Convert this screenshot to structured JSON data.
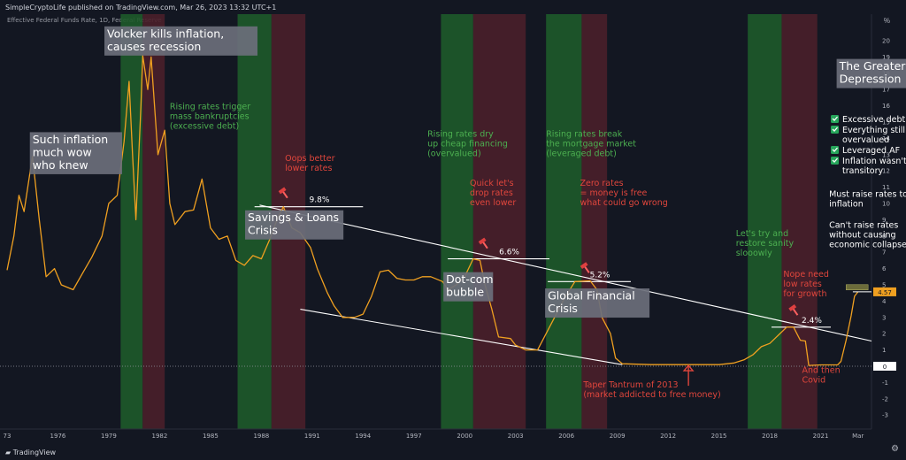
{
  "header": {
    "publisher": "SimpleCryptoLife published on TradingView.com, Mar 26, 2023 13:32 UTC+1",
    "series_title": "Effective Federal Funds Rate, 1D, Federal Reserve",
    "unit": "%",
    "logo": "TradingView"
  },
  "colors": {
    "background": "#131722",
    "line": "#f0a020",
    "green_band": "#1e5a2a",
    "red_band": "#4a1f2a",
    "annot_red": "#e0463c",
    "annot_green": "#4caf50",
    "trend": "#ffffff",
    "check": "#26a65b"
  },
  "icons": [
    "tradingview-logo-icon",
    "settings-gear-icon"
  ],
  "chart_data": {
    "type": "line",
    "title": "Effective Federal Funds Rate",
    "xlabel": "",
    "ylabel": "%",
    "ylim": [
      -3,
      21
    ],
    "xlim": [
      1973,
      2024
    ],
    "x_ticks": [
      "73",
      "1976",
      "1979",
      "1982",
      "1985",
      "1988",
      "1991",
      "1994",
      "1997",
      "2000",
      "2003",
      "2006",
      "2009",
      "2012",
      "2015",
      "2018",
      "2021",
      "Mar"
    ],
    "y_ticks": [
      20,
      19,
      18,
      17,
      16,
      15,
      14,
      13,
      12,
      11,
      10,
      9,
      8,
      7,
      6,
      5,
      4,
      3,
      2,
      1,
      0,
      -1,
      -2,
      -3
    ],
    "series": [
      {
        "values": [
          [
            1973.0,
            5.9
          ],
          [
            1973.4,
            8.0
          ],
          [
            1973.7,
            10.5
          ],
          [
            1974.0,
            9.5
          ],
          [
            1974.5,
            12.9
          ],
          [
            1974.9,
            9.0
          ],
          [
            1975.3,
            5.5
          ],
          [
            1975.8,
            6.0
          ],
          [
            1976.2,
            5.0
          ],
          [
            1976.9,
            4.7
          ],
          [
            1977.5,
            5.8
          ],
          [
            1978.0,
            6.7
          ],
          [
            1978.6,
            8.0
          ],
          [
            1979.0,
            10.0
          ],
          [
            1979.5,
            10.5
          ],
          [
            1979.9,
            13.8
          ],
          [
            1980.2,
            17.5
          ],
          [
            1980.4,
            13.0
          ],
          [
            1980.6,
            9.0
          ],
          [
            1980.9,
            16.0
          ],
          [
            1981.0,
            19.1
          ],
          [
            1981.3,
            17.0
          ],
          [
            1981.5,
            19.0
          ],
          [
            1981.9,
            13.0
          ],
          [
            1982.3,
            14.5
          ],
          [
            1982.6,
            10.0
          ],
          [
            1982.9,
            8.7
          ],
          [
            1983.5,
            9.5
          ],
          [
            1984.0,
            9.6
          ],
          [
            1984.5,
            11.5
          ],
          [
            1985.0,
            8.5
          ],
          [
            1985.5,
            7.8
          ],
          [
            1986.0,
            8.0
          ],
          [
            1986.5,
            6.5
          ],
          [
            1987.0,
            6.2
          ],
          [
            1987.5,
            6.8
          ],
          [
            1988.0,
            6.6
          ],
          [
            1988.5,
            7.8
          ],
          [
            1989.0,
            9.2
          ],
          [
            1989.3,
            9.8
          ],
          [
            1989.8,
            8.5
          ],
          [
            1990.3,
            8.2
          ],
          [
            1990.9,
            7.3
          ],
          [
            1991.3,
            6.0
          ],
          [
            1991.9,
            4.5
          ],
          [
            1992.3,
            3.7
          ],
          [
            1992.8,
            3.0
          ],
          [
            1993.5,
            3.0
          ],
          [
            1994.0,
            3.2
          ],
          [
            1994.5,
            4.3
          ],
          [
            1995.0,
            5.8
          ],
          [
            1995.5,
            5.9
          ],
          [
            1996.0,
            5.4
          ],
          [
            1996.5,
            5.3
          ],
          [
            1997.0,
            5.3
          ],
          [
            1997.5,
            5.5
          ],
          [
            1998.0,
            5.5
          ],
          [
            1998.7,
            5.2
          ],
          [
            1999.0,
            4.7
          ],
          [
            1999.5,
            5.0
          ],
          [
            2000.0,
            5.5
          ],
          [
            2000.5,
            6.6
          ],
          [
            2000.9,
            6.5
          ],
          [
            2001.2,
            5.0
          ],
          [
            2001.6,
            3.5
          ],
          [
            2002.0,
            1.8
          ],
          [
            2002.7,
            1.7
          ],
          [
            2003.0,
            1.3
          ],
          [
            2003.6,
            1.0
          ],
          [
            2004.3,
            1.0
          ],
          [
            2004.8,
            2.0
          ],
          [
            2005.3,
            3.0
          ],
          [
            2005.9,
            4.2
          ],
          [
            2006.5,
            5.2
          ],
          [
            2007.4,
            5.25
          ],
          [
            2007.8,
            4.7
          ],
          [
            2008.1,
            3.0
          ],
          [
            2008.6,
            2.0
          ],
          [
            2008.9,
            0.5
          ],
          [
            2009.3,
            0.15
          ],
          [
            2011.0,
            0.1
          ],
          [
            2013.0,
            0.1
          ],
          [
            2015.0,
            0.1
          ],
          [
            2015.9,
            0.2
          ],
          [
            2016.5,
            0.4
          ],
          [
            2017.0,
            0.7
          ],
          [
            2017.5,
            1.2
          ],
          [
            2018.0,
            1.4
          ],
          [
            2018.5,
            1.9
          ],
          [
            2019.0,
            2.4
          ],
          [
            2019.4,
            2.4
          ],
          [
            2019.8,
            1.6
          ],
          [
            2020.1,
            1.55
          ],
          [
            2020.3,
            0.05
          ],
          [
            2021.0,
            0.08
          ],
          [
            2022.0,
            0.08
          ],
          [
            2022.2,
            0.3
          ],
          [
            2022.5,
            1.6
          ],
          [
            2022.8,
            3.1
          ],
          [
            2023.0,
            4.3
          ],
          [
            2023.2,
            4.57
          ]
        ]
      }
    ],
    "bands": [
      {
        "color": "green",
        "from": 1979.7,
        "to": 1981.0
      },
      {
        "color": "red",
        "from": 1981.0,
        "to": 1982.3
      },
      {
        "color": "green",
        "from": 1986.6,
        "to": 1988.6
      },
      {
        "color": "red",
        "from": 1988.6,
        "to": 1990.6
      },
      {
        "color": "green",
        "from": 1998.6,
        "to": 2000.5
      },
      {
        "color": "red",
        "from": 2000.5,
        "to": 2003.6
      },
      {
        "color": "green",
        "from": 2004.8,
        "to": 2006.9
      },
      {
        "color": "red",
        "from": 2006.9,
        "to": 2008.4
      },
      {
        "color": "green",
        "from": 2016.7,
        "to": 2018.7
      },
      {
        "color": "red",
        "from": 2018.7,
        "to": 2020.8
      }
    ],
    "peak_lines": [
      {
        "label": "9.8%",
        "value": 9.8,
        "from": 1987.6,
        "to": 1994.0
      },
      {
        "label": "6.6%",
        "value": 6.6,
        "from": 1999.0,
        "to": 2005.0
      },
      {
        "label": "5.2%",
        "value": 5.2,
        "from": 2004.9,
        "to": 2009.8
      },
      {
        "label": "2.4%",
        "value": 2.4,
        "from": 2018.1,
        "to": 2021.6
      }
    ],
    "trendlines": [
      {
        "from": [
          1987.9,
          9.9
        ],
        "to": [
          2024.0,
          1.55
        ]
      },
      {
        "from": [
          1990.3,
          3.5
        ],
        "to": [
          2009.3,
          0.1
        ]
      }
    ],
    "last_value_label": "4.57",
    "current_box": {
      "from": 2022.5,
      "to": 2023.8,
      "value": 4.85
    },
    "arrow_year": 2013.2,
    "hammer_markers": [
      [
        1989.3,
        10.7
      ],
      [
        2001.1,
        7.6
      ],
      [
        2007.1,
        6.1
      ],
      [
        2019.4,
        3.5
      ]
    ]
  },
  "annotations": [
    {
      "id": "volcker",
      "lines": [
        "Volcker kills inflation,",
        "causes recession"
      ],
      "style": "box",
      "x": 1978.9,
      "y": 20.2,
      "color": "#ffffff",
      "bg": "#6b6f7b"
    },
    {
      "id": "inflation-wow",
      "lines": [
        "Such inflation",
        "much wow",
        "who knew"
      ],
      "style": "box",
      "x": 1974.5,
      "y": 13.7,
      "color": "#ffffff",
      "bg": "#6b6f7b"
    },
    {
      "id": "greater-depression",
      "lines": [
        "The Greater",
        "Depression"
      ],
      "style": "box",
      "x": 2022.1,
      "y": 18.2,
      "color": "#ffffff",
      "bg": "#6b6f7b"
    },
    {
      "id": "savings-loans",
      "lines": [
        "Savings & Loans",
        "Crisis"
      ],
      "style": "box",
      "x": 1987.2,
      "y": 8.9,
      "color": "#ffffff",
      "bg": "#6b6f7b"
    },
    {
      "id": "dotcom",
      "lines": [
        "Dot-com",
        "bubble"
      ],
      "style": "box",
      "x": 1998.9,
      "y": 5.1,
      "color": "#ffffff",
      "bg": "#6b6f7b"
    },
    {
      "id": "gfc",
      "lines": [
        "Global Financial",
        "Crisis"
      ],
      "style": "box",
      "x": 2004.9,
      "y": 4.1,
      "color": "#ffffff",
      "bg": "#6b6f7b"
    },
    {
      "id": "rising-bankruptcies",
      "lines": [
        "Rising rates trigger",
        "mass bankruptcies",
        "(excessive debt)"
      ],
      "style": "green",
      "x": 1982.6,
      "y": 15.8
    },
    {
      "id": "rising-dotcom",
      "lines": [
        "Rising rates dry",
        "up cheap financing",
        "(overvalued)"
      ],
      "style": "green",
      "x": 1997.8,
      "y": 14.1
    },
    {
      "id": "rising-mortgage",
      "lines": [
        "Rising rates break",
        "the mortgage market",
        "(leveraged debt)"
      ],
      "style": "green",
      "x": 2004.8,
      "y": 14.1
    },
    {
      "id": "restore-sanity",
      "lines": [
        "Let's try and",
        "restore sanity",
        "slooowly"
      ],
      "style": "green",
      "x": 2016.0,
      "y": 8.0
    },
    {
      "id": "oops-lower",
      "lines": [
        "Oops better",
        "lower rates"
      ],
      "style": "red",
      "x": 1989.4,
      "y": 12.6
    },
    {
      "id": "quick-drop",
      "lines": [
        "Quick let's",
        "drop rates",
        "even lower"
      ],
      "style": "red",
      "x": 2000.3,
      "y": 11.1
    },
    {
      "id": "zero-rates",
      "lines": [
        "Zero rates",
        "= money is free",
        "what could go wrong"
      ],
      "style": "red",
      "x": 2006.8,
      "y": 11.1
    },
    {
      "id": "nope-need-low",
      "lines": [
        "Nope need",
        "low rates",
        "for growth"
      ],
      "style": "red",
      "x": 2018.8,
      "y": 5.5
    },
    {
      "id": "taper-tantrum",
      "lines": [
        "Taper Tantrum of 2013",
        "(market addicted to free money)"
      ],
      "style": "red",
      "x": 2007.0,
      "y": -1.3
    },
    {
      "id": "covid",
      "lines": [
        "And then",
        "Covid"
      ],
      "style": "red",
      "x": 2019.9,
      "y": -0.4
    },
    {
      "id": "must-raise",
      "lines": [
        "Must raise rates to stop",
        "inflation"
      ],
      "style": "white",
      "x": 2021.5,
      "y": 10.4
    },
    {
      "id": "cant-raise",
      "lines": [
        "Can't raise rates",
        "without causing",
        "economic collapse"
      ],
      "style": "white",
      "x": 2021.5,
      "y": 8.5
    }
  ],
  "checklist": {
    "x": 2021.6,
    "y": 15.0,
    "items": [
      {
        "lines": [
          "Excessive debt"
        ]
      },
      {
        "lines": [
          "Everything still",
          "overvalued"
        ]
      },
      {
        "lines": [
          "Leveraged AF"
        ]
      },
      {
        "lines": [
          "Inflation wasn't",
          "transitory"
        ]
      }
    ]
  }
}
